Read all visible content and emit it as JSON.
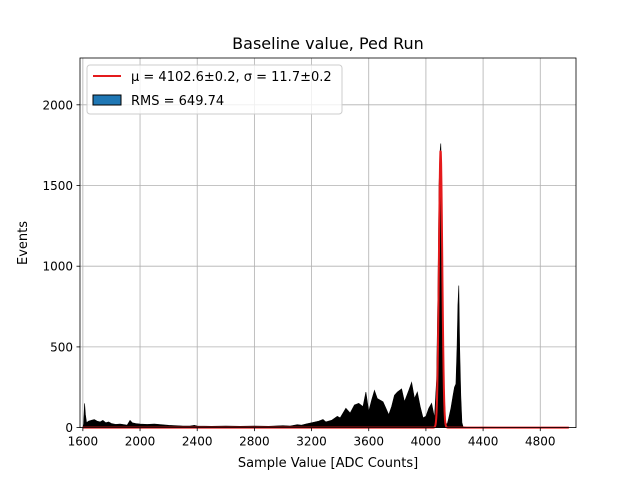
{
  "chart_data": {
    "type": "histogram",
    "title": "Baseline value, Ped Run",
    "xlabel": "Sample Value [ADC Counts]",
    "ylabel": "Events",
    "xlim": [
      1580,
      5050
    ],
    "ylim": [
      0,
      2290
    ],
    "xticks": [
      1600,
      2000,
      2400,
      2800,
      3200,
      3600,
      4000,
      4400,
      4800
    ],
    "yticks": [
      0,
      500,
      1000,
      1500,
      2000
    ],
    "grid": true,
    "legend": {
      "placement": "top-left",
      "entries": [
        {
          "label": "μ = 4102.6±0.2, σ = 11.7±0.2",
          "kind": "line",
          "color": "#e41a1c"
        },
        {
          "label": "RMS = 649.74",
          "kind": "patch",
          "color": "#1f77b4"
        }
      ]
    },
    "histogram": {
      "color": "#000000",
      "points": [
        [
          1600,
          0
        ],
        [
          1605,
          20
        ],
        [
          1612,
          150
        ],
        [
          1618,
          80
        ],
        [
          1626,
          30
        ],
        [
          1640,
          40
        ],
        [
          1660,
          45
        ],
        [
          1680,
          50
        ],
        [
          1700,
          40
        ],
        [
          1720,
          35
        ],
        [
          1740,
          45
        ],
        [
          1760,
          30
        ],
        [
          1780,
          35
        ],
        [
          1800,
          25
        ],
        [
          1830,
          20
        ],
        [
          1860,
          22
        ],
        [
          1890,
          18
        ],
        [
          1910,
          15
        ],
        [
          1930,
          45
        ],
        [
          1945,
          30
        ],
        [
          1970,
          25
        ],
        [
          2000,
          22
        ],
        [
          2050,
          20
        ],
        [
          2100,
          22
        ],
        [
          2150,
          18
        ],
        [
          2200,
          14
        ],
        [
          2250,
          12
        ],
        [
          2300,
          10
        ],
        [
          2350,
          10
        ],
        [
          2380,
          14
        ],
        [
          2400,
          10
        ],
        [
          2500,
          8
        ],
        [
          2600,
          10
        ],
        [
          2700,
          8
        ],
        [
          2800,
          10
        ],
        [
          2900,
          8
        ],
        [
          3000,
          12
        ],
        [
          3050,
          10
        ],
        [
          3100,
          18
        ],
        [
          3130,
          15
        ],
        [
          3160,
          22
        ],
        [
          3200,
          30
        ],
        [
          3250,
          40
        ],
        [
          3280,
          50
        ],
        [
          3300,
          35
        ],
        [
          3340,
          45
        ],
        [
          3380,
          70
        ],
        [
          3400,
          60
        ],
        [
          3440,
          120
        ],
        [
          3470,
          90
        ],
        [
          3500,
          140
        ],
        [
          3530,
          150
        ],
        [
          3560,
          130
        ],
        [
          3580,
          220
        ],
        [
          3600,
          100
        ],
        [
          3620,
          170
        ],
        [
          3640,
          230
        ],
        [
          3660,
          180
        ],
        [
          3700,
          160
        ],
        [
          3720,
          120
        ],
        [
          3740,
          80
        ],
        [
          3760,
          130
        ],
        [
          3780,
          200
        ],
        [
          3800,
          220
        ],
        [
          3830,
          240
        ],
        [
          3850,
          160
        ],
        [
          3880,
          230
        ],
        [
          3900,
          280
        ],
        [
          3920,
          180
        ],
        [
          3940,
          220
        ],
        [
          3960,
          130
        ],
        [
          3980,
          60
        ],
        [
          4000,
          70
        ],
        [
          4020,
          120
        ],
        [
          4040,
          150
        ],
        [
          4060,
          60
        ],
        [
          4075,
          300
        ],
        [
          4085,
          900
        ],
        [
          4092,
          1500
        ],
        [
          4100,
          1720
        ],
        [
          4104,
          1760
        ],
        [
          4108,
          1600
        ],
        [
          4114,
          1100
        ],
        [
          4120,
          400
        ],
        [
          4128,
          200
        ],
        [
          4138,
          20
        ],
        [
          4150,
          25
        ],
        [
          4160,
          60
        ],
        [
          4175,
          120
        ],
        [
          4190,
          200
        ],
        [
          4200,
          250
        ],
        [
          4210,
          270
        ],
        [
          4218,
          500
        ],
        [
          4224,
          760
        ],
        [
          4230,
          880
        ],
        [
          4236,
          500
        ],
        [
          4244,
          200
        ],
        [
          4252,
          30
        ],
        [
          4260,
          5
        ],
        [
          4300,
          0
        ],
        [
          4400,
          3
        ],
        [
          4500,
          2
        ],
        [
          4600,
          0
        ],
        [
          5000,
          0
        ]
      ]
    },
    "fit": {
      "color": "#e41a1c",
      "mu": 4102.6,
      "sigma": 11.7,
      "amplitude": 1720,
      "xrange": [
        1600,
        5000
      ]
    }
  }
}
